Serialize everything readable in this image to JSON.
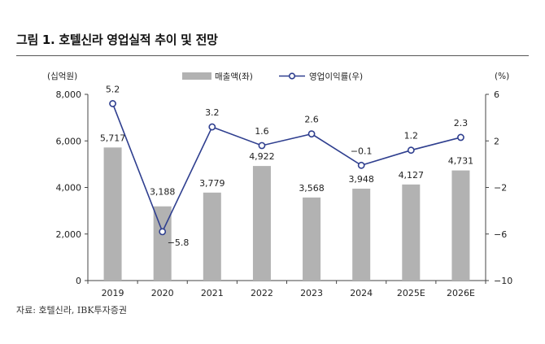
{
  "figure": {
    "title": "그림 1. 호텔신라 영업실적 추이 및 전망",
    "source": "자료: 호텔신라, IBK투자증권"
  },
  "chart_data": {
    "type": "bar+line",
    "categories": [
      "2019",
      "2020",
      "2021",
      "2022",
      "2023",
      "2024",
      "2025E",
      "2026E"
    ],
    "series": [
      {
        "name": "매출액(좌)",
        "type": "bar",
        "axis": "left",
        "values": [
          5717,
          3188,
          3779,
          4922,
          3568,
          3948,
          4127,
          4731
        ],
        "labels": [
          "5,717",
          "3,188",
          "3,779",
          "4,922",
          "3,568",
          "3,948",
          "4,127",
          "4,731"
        ],
        "color": "#b2b2b2"
      },
      {
        "name": "영업이익률(우)",
        "type": "line",
        "axis": "right",
        "values": [
          5.2,
          -5.8,
          3.2,
          1.6,
          2.6,
          -0.1,
          1.2,
          2.3
        ],
        "labels": [
          "5.2",
          "−5.8",
          "3.2",
          "1.6",
          "2.6",
          "−0.1",
          "1.2",
          "2.3"
        ],
        "color": "#2f3f8f"
      }
    ],
    "y_left": {
      "unit": "(십억원)",
      "range": [
        0,
        8000
      ],
      "ticks": [
        0,
        2000,
        4000,
        6000,
        8000
      ],
      "tick_labels": [
        "0",
        "2,000",
        "4,000",
        "6,000",
        "8,000"
      ]
    },
    "y_right": {
      "unit": "(%)",
      "range": [
        -10,
        6
      ],
      "ticks": [
        -10,
        -6,
        -2,
        2,
        6
      ],
      "tick_labels": [
        "−10",
        "−6",
        "−2",
        "2",
        "6"
      ]
    },
    "legend_position": "top-center",
    "grid": false
  }
}
